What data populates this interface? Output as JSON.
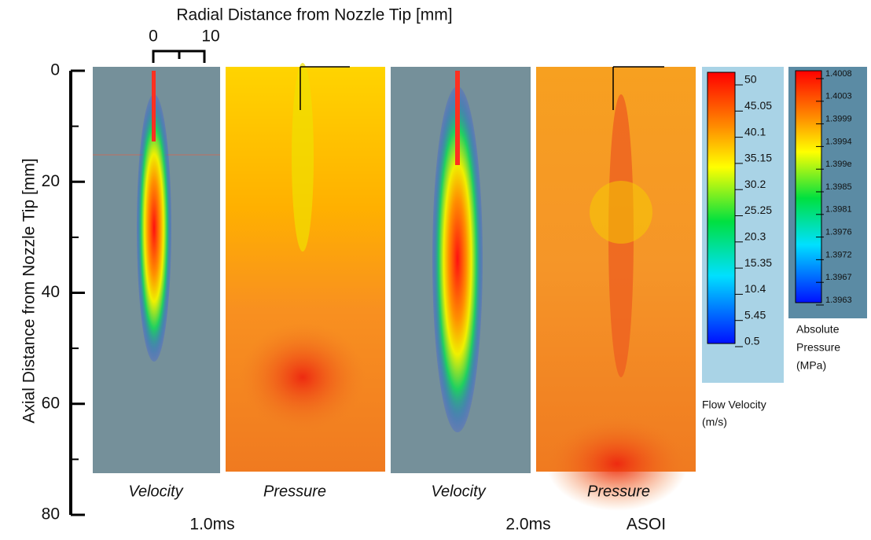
{
  "y_axis": {
    "title": "Axial Distance from Nozzle Tip [mm]",
    "lim": [
      0,
      80
    ],
    "ticks": [
      0,
      20,
      40,
      60,
      80
    ]
  },
  "x_axis": {
    "title": "Radial Distance from Nozzle Tip [mm]",
    "lim": [
      0,
      10
    ],
    "ticks": [
      0,
      10
    ]
  },
  "panels": [
    {
      "label": "Velocity"
    },
    {
      "label": "Pressure"
    },
    {
      "label": "Velocity"
    },
    {
      "label": "Pressure"
    }
  ],
  "times": [
    "1.0ms",
    "2.0ms"
  ],
  "time_note": "ASOI",
  "velocity_legend": {
    "title_lines": [
      "Flow Velocity",
      "(m/s)"
    ],
    "ticks": [
      "50",
      "45.05",
      "40.1",
      "35.15",
      "30.2",
      "25.25",
      "20.3",
      "15.35",
      "10.4",
      "5.45",
      "0.5"
    ]
  },
  "pressure_legend": {
    "title_lines": [
      "Absolute",
      "Pressure",
      "(MPa)"
    ],
    "ticks": [
      "1.4008",
      "1.4003",
      "1.3999",
      "1.3994",
      "1.399e",
      "1.3985",
      "1.3981",
      "1.3976",
      "1.3972",
      "1.3967",
      "1.3963"
    ]
  }
}
